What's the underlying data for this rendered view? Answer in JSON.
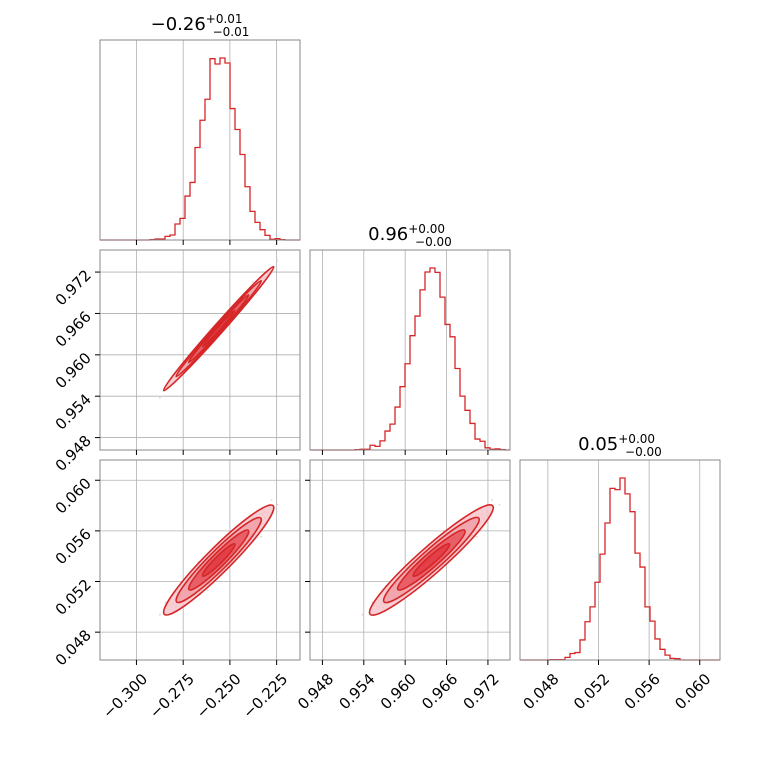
{
  "chart_data": {
    "type": "corner",
    "color": "#d62728",
    "fill_color": "#e8525a",
    "light_fill_color": "#f4c6cb",
    "parameters": [
      {
        "title_value": "−0.26",
        "title_plus": "+0.01",
        "title_minus": "−0.01",
        "range": [
          -0.3195,
          -0.2125
        ],
        "ticks": [
          -0.3,
          -0.275,
          -0.25,
          -0.225
        ],
        "tick_labels": [
          "−0.300",
          "−0.275",
          "−0.250",
          "−0.225"
        ],
        "median": -0.256,
        "sigma": 0.0095
      },
      {
        "title_value": "0.96",
        "title_plus": "+0.00",
        "title_minus": "−0.00",
        "range": [
          0.9462,
          0.9752
        ],
        "ticks": [
          0.948,
          0.954,
          0.96,
          0.966,
          0.972
        ],
        "tick_labels": [
          "0.948",
          "0.954",
          "0.960",
          "0.966",
          "0.972"
        ],
        "median": 0.9638,
        "sigma": 0.0029
      },
      {
        "title_value": "0.05",
        "title_plus": "+0.00",
        "title_minus": "−0.00",
        "range": [
          0.0458,
          0.0616
        ],
        "ticks": [
          0.048,
          0.052,
          0.056,
          0.06
        ],
        "tick_labels": [
          "0.048",
          "0.052",
          "0.056",
          "0.060"
        ],
        "median": 0.0537,
        "sigma": 0.0014
      }
    ],
    "histogram_bins": 40,
    "grid": true
  }
}
